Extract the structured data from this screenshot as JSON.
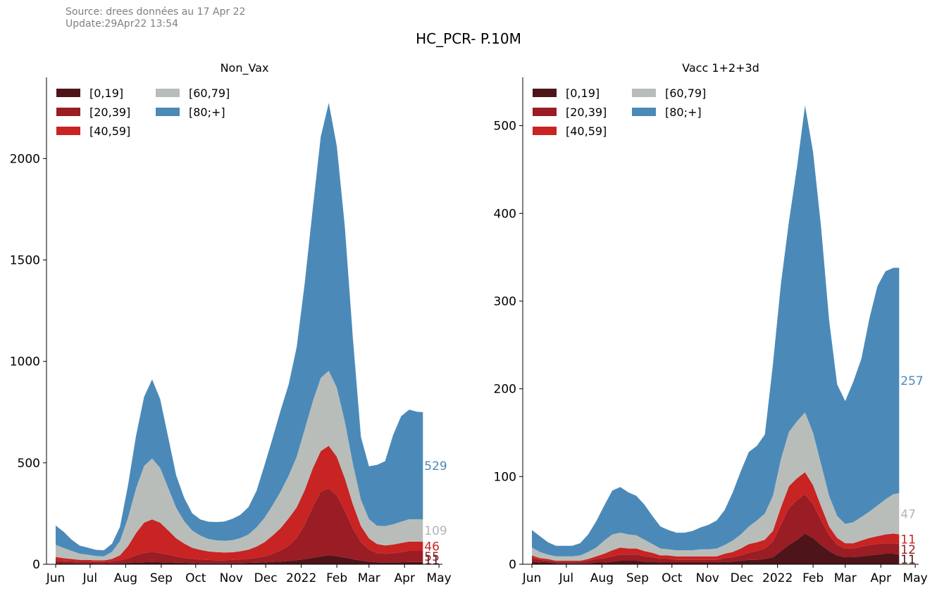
{
  "header": {
    "source_line1": "Source: drees données au 17 Apr 22",
    "source_line2": "Update:29Apr22 13:54",
    "suptitle": "HC_PCR- P.10M"
  },
  "chart_data": [
    {
      "type": "area",
      "stacked": true,
      "title": "Non_Vax",
      "ylim": [
        0,
        2400
      ],
      "yticks": [
        0,
        500,
        1000,
        1500,
        2000
      ],
      "xtick_labels": [
        "Jun",
        "Jul",
        "Aug",
        "Sep",
        "Oct",
        "Nov",
        "Dec",
        "2022",
        "Feb",
        "Mar",
        "Apr",
        "May"
      ],
      "legend_placement": "top-left",
      "grid": false,
      "x": [
        "2021-06-01",
        "2021-06-08",
        "2021-06-15",
        "2021-06-22",
        "2021-06-29",
        "2021-07-06",
        "2021-07-13",
        "2021-07-20",
        "2021-07-27",
        "2021-08-03",
        "2021-08-10",
        "2021-08-17",
        "2021-08-24",
        "2021-08-31",
        "2021-09-07",
        "2021-09-14",
        "2021-09-21",
        "2021-09-28",
        "2021-10-05",
        "2021-10-12",
        "2021-10-19",
        "2021-10-26",
        "2021-11-02",
        "2021-11-09",
        "2021-11-16",
        "2021-11-23",
        "2021-11-30",
        "2021-12-07",
        "2021-12-14",
        "2021-12-21",
        "2021-12-28",
        "2022-01-04",
        "2022-01-11",
        "2022-01-18",
        "2022-01-25",
        "2022-02-01",
        "2022-02-08",
        "2022-02-15",
        "2022-02-22",
        "2022-03-01",
        "2022-03-08",
        "2022-03-15",
        "2022-03-22",
        "2022-03-29",
        "2022-04-05",
        "2022-04-12",
        "2022-04-17"
      ],
      "series": [
        {
          "name": "[0,19]",
          "color": "#4d1519",
          "end_label": "11",
          "values": [
            6,
            5,
            5,
            4,
            4,
            3,
            3,
            4,
            5,
            7,
            9,
            10,
            11,
            10,
            9,
            8,
            7,
            6,
            5,
            5,
            5,
            5,
            5,
            6,
            7,
            8,
            9,
            11,
            13,
            16,
            20,
            25,
            32,
            38,
            44,
            40,
            33,
            25,
            18,
            13,
            10,
            9,
            9,
            10,
            11,
            11,
            11
          ]
        },
        {
          "name": "[20,39]",
          "color": "#9a1c24",
          "end_label": "55",
          "values": [
            12,
            10,
            9,
            8,
            8,
            8,
            8,
            10,
            14,
            22,
            35,
            45,
            50,
            45,
            38,
            30,
            25,
            20,
            18,
            16,
            15,
            15,
            16,
            18,
            20,
            24,
            30,
            40,
            55,
            75,
            110,
            170,
            250,
            320,
            330,
            300,
            230,
            150,
            90,
            60,
            45,
            42,
            45,
            50,
            55,
            55,
            55
          ]
        },
        {
          "name": "[40,59]",
          "color": "#c82423",
          "end_label": "46",
          "values": [
            18,
            15,
            12,
            10,
            10,
            8,
            8,
            12,
            25,
            60,
            110,
            150,
            160,
            150,
            120,
            90,
            70,
            55,
            48,
            42,
            40,
            38,
            38,
            40,
            45,
            55,
            70,
            90,
            110,
            135,
            150,
            170,
            190,
            200,
            210,
            190,
            160,
            120,
            80,
            55,
            45,
            42,
            43,
            45,
            46,
            46,
            46
          ]
        },
        {
          "name": "[60,79]",
          "color": "#b9bdb9",
          "end_label": "109",
          "values": [
            60,
            50,
            40,
            30,
            25,
            22,
            20,
            35,
            70,
            140,
            220,
            280,
            300,
            270,
            210,
            150,
            110,
            85,
            70,
            62,
            58,
            58,
            60,
            65,
            75,
            95,
            120,
            150,
            180,
            210,
            250,
            300,
            330,
            360,
            370,
            340,
            280,
            200,
            130,
            95,
            90,
            95,
            100,
            105,
            110,
            110,
            109
          ]
        },
        {
          "name": "[80;+]",
          "color": "#4b8ab8",
          "end_label": "529",
          "values": [
            95,
            80,
            55,
            40,
            35,
            30,
            30,
            40,
            70,
            160,
            260,
            340,
            390,
            340,
            250,
            160,
            115,
            85,
            80,
            85,
            90,
            95,
            105,
            115,
            135,
            180,
            260,
            330,
            400,
            450,
            540,
            720,
            950,
            1190,
            1320,
            1190,
            960,
            620,
            310,
            260,
            300,
            320,
            440,
            520,
            540,
            530,
            529
          ]
        }
      ]
    },
    {
      "type": "area",
      "stacked": true,
      "title": "Vacc 1+2+3d",
      "ylim": [
        0,
        555
      ],
      "yticks": [
        0,
        100,
        200,
        300,
        400,
        500
      ],
      "xtick_labels": [
        "Jun",
        "Jul",
        "Aug",
        "Sep",
        "Oct",
        "Nov",
        "Dec",
        "2022",
        "Feb",
        "Mar",
        "Apr",
        "May"
      ],
      "legend_placement": "top-left",
      "grid": false,
      "x": [
        "2021-06-01",
        "2021-06-08",
        "2021-06-15",
        "2021-06-22",
        "2021-06-29",
        "2021-07-06",
        "2021-07-13",
        "2021-07-20",
        "2021-07-27",
        "2021-08-03",
        "2021-08-10",
        "2021-08-17",
        "2021-08-24",
        "2021-08-31",
        "2021-09-07",
        "2021-09-14",
        "2021-09-21",
        "2021-09-28",
        "2021-10-05",
        "2021-10-12",
        "2021-10-19",
        "2021-10-26",
        "2021-11-02",
        "2021-11-09",
        "2021-11-16",
        "2021-11-23",
        "2021-11-30",
        "2021-12-07",
        "2021-12-14",
        "2021-12-21",
        "2021-12-28",
        "2022-01-04",
        "2022-01-11",
        "2022-01-18",
        "2022-01-25",
        "2022-02-01",
        "2022-02-08",
        "2022-02-15",
        "2022-02-22",
        "2022-03-01",
        "2022-03-08",
        "2022-03-15",
        "2022-03-22",
        "2022-03-29",
        "2022-04-05",
        "2022-04-12",
        "2022-04-17"
      ],
      "series": [
        {
          "name": "[0,19]",
          "color": "#4d1519",
          "end_label": "11",
          "values": [
            3,
            2,
            2,
            1,
            1,
            1,
            1,
            1,
            2,
            2,
            3,
            4,
            4,
            4,
            3,
            3,
            2,
            2,
            2,
            2,
            2,
            2,
            2,
            2,
            3,
            3,
            4,
            5,
            5,
            6,
            8,
            15,
            22,
            28,
            35,
            30,
            22,
            15,
            10,
            8,
            8,
            9,
            10,
            11,
            12,
            12,
            11
          ]
        },
        {
          "name": "[20,39]",
          "color": "#9a1c24",
          "end_label": "12",
          "values": [
            4,
            3,
            2,
            2,
            2,
            2,
            2,
            3,
            4,
            5,
            6,
            7,
            7,
            7,
            6,
            5,
            4,
            4,
            3,
            3,
            3,
            3,
            3,
            3,
            4,
            5,
            6,
            8,
            10,
            12,
            18,
            30,
            42,
            45,
            45,
            38,
            28,
            18,
            12,
            10,
            10,
            11,
            12,
            12,
            12,
            12,
            12
          ]
        },
        {
          "name": "[40,59]",
          "color": "#c82423",
          "end_label": "11",
          "values": [
            3,
            2,
            2,
            1,
            1,
            1,
            1,
            2,
            3,
            5,
            7,
            8,
            7,
            7,
            6,
            5,
            4,
            4,
            4,
            4,
            4,
            4,
            4,
            4,
            5,
            6,
            8,
            10,
            10,
            10,
            12,
            20,
            25,
            25,
            25,
            22,
            16,
            10,
            8,
            6,
            6,
            7,
            8,
            9,
            10,
            11,
            11
          ]
        },
        {
          "name": "[60,79]",
          "color": "#b9bdb9",
          "end_label": "47",
          "values": [
            9,
            7,
            5,
            5,
            5,
            5,
            6,
            8,
            10,
            15,
            18,
            17,
            16,
            15,
            13,
            10,
            8,
            7,
            7,
            7,
            7,
            8,
            8,
            9,
            10,
            13,
            16,
            20,
            25,
            30,
            40,
            55,
            62,
            65,
            68,
            60,
            48,
            35,
            25,
            22,
            24,
            27,
            30,
            35,
            40,
            45,
            47
          ]
        },
        {
          "name": "[80;+]",
          "color": "#4b8ab8",
          "end_label": "257",
          "values": [
            20,
            18,
            14,
            12,
            12,
            12,
            14,
            20,
            30,
            40,
            50,
            52,
            48,
            45,
            40,
            32,
            25,
            22,
            20,
            20,
            22,
            25,
            28,
            32,
            40,
            55,
            72,
            85,
            85,
            90,
            150,
            200,
            240,
            290,
            350,
            320,
            270,
            200,
            150,
            140,
            160,
            180,
            220,
            250,
            260,
            258,
            257
          ]
        }
      ]
    }
  ]
}
